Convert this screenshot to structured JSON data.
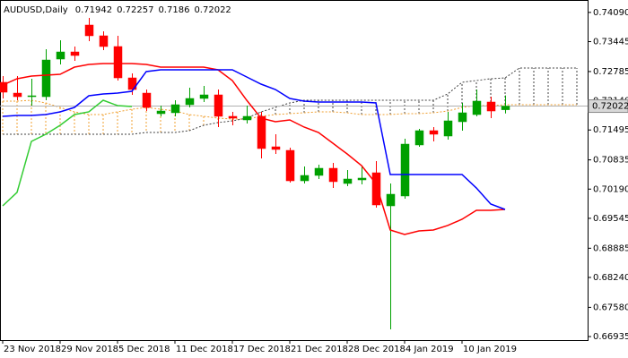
{
  "chart_data": {
    "type": "candlestick",
    "symbol": "AUDUSD,Daily",
    "categories": [
      "23 Nov 2018",
      null,
      null,
      null,
      "29 Nov 2018",
      null,
      null,
      null,
      "5 Dec 2018",
      null,
      null,
      null,
      "11 Dec 2018",
      null,
      null,
      null,
      "17 Dec 2018",
      null,
      null,
      null,
      "21 Dec 2018",
      null,
      null,
      null,
      "28 Dec 2018",
      null,
      null,
      null,
      "4 Jan 2019",
      null,
      null,
      null,
      "10 Jan 2019",
      null,
      null,
      null,
      null,
      null,
      null,
      null,
      null
    ],
    "ohlc": {
      "open": [
        0.72547,
        0.72309,
        0.7223,
        0.7223,
        0.7306,
        0.73218,
        0.73811,
        0.73574,
        0.73337,
        0.72645,
        0.72309,
        0.71855,
        0.71875,
        0.72053,
        0.72191,
        0.7227,
        0.71796,
        0.71717,
        0.71796,
        0.71124,
        0.71045,
        0.70373,
        0.70492,
        0.7065,
        0.70314,
        0.70393,
        0.70551,
        0.6982,
        0.70038,
        0.71164,
        0.7148,
        0.71361,
        0.71677,
        0.71835,
        0.72112,
        0.71942,
        null,
        null,
        null,
        null,
        null
      ],
      "high": [
        0.72685,
        0.72685,
        0.72626,
        0.73277,
        0.73475,
        0.73337,
        0.73969,
        0.73673,
        0.73574,
        0.72744,
        0.72388,
        0.72033,
        0.72151,
        0.72428,
        0.72468,
        0.72388,
        0.71895,
        0.72033,
        0.71895,
        0.71401,
        0.71104,
        0.7069,
        0.70729,
        0.70769,
        0.70611,
        0.7069,
        0.70808,
        0.70314,
        0.71302,
        0.71519,
        0.71559,
        0.71895,
        0.72092,
        0.72388,
        0.7223,
        0.72257,
        null,
        null,
        null,
        null,
        null
      ],
      "low": [
        0.72191,
        0.72151,
        0.72033,
        0.72151,
        0.72942,
        0.73021,
        0.73455,
        0.73258,
        0.72586,
        0.7227,
        0.71914,
        0.71796,
        0.71796,
        0.71993,
        0.72112,
        0.71559,
        0.71598,
        0.71638,
        0.70867,
        0.70966,
        0.70334,
        0.70314,
        0.70413,
        0.70215,
        0.70255,
        0.70294,
        0.69781,
        0.67094,
        0.69978,
        0.71124,
        0.71243,
        0.71282,
        0.7148,
        0.71796,
        0.71756,
        0.7186,
        null,
        null,
        null,
        null,
        null
      ],
      "close": [
        0.72329,
        0.7223,
        0.7225,
        0.7304,
        0.73218,
        0.73139,
        0.73574,
        0.73337,
        0.72645,
        0.72388,
        0.71993,
        0.71914,
        0.72053,
        0.72191,
        0.7227,
        0.71796,
        0.71756,
        0.71796,
        0.71085,
        0.71065,
        0.70373,
        0.70492,
        0.7065,
        0.70354,
        0.70413,
        0.70433,
        0.6984,
        0.70077,
        0.71183,
        0.7148,
        0.71401,
        0.71697,
        0.71875,
        0.72132,
        0.71914,
        0.72022,
        null,
        null,
        null,
        null,
        null
      ]
    },
    "up_color": "#00a000",
    "down_color": "#ff0000",
    "lines": [
      {
        "color": "#ff0000",
        "values": [
          0.72487,
          0.72626,
          0.72685,
          0.72705,
          0.72724,
          0.72882,
          0.72942,
          0.72961,
          0.72961,
          0.72961,
          0.72942,
          0.72882,
          0.72882,
          0.72882,
          0.72882,
          0.72823,
          0.72586,
          0.72151,
          0.71756,
          0.71677,
          0.71717,
          0.71559,
          0.7144,
          0.71203,
          0.70966,
          0.70709,
          0.70314,
          0.69287,
          0.69188,
          0.69267,
          0.69287,
          0.69386,
          0.69524,
          0.69722,
          0.69722,
          0.69741,
          null,
          null,
          null,
          null,
          null
        ]
      },
      {
        "color": "#0000ff",
        "values": [
          0.71796,
          0.71816,
          0.71816,
          0.71835,
          0.71895,
          0.71993,
          0.7225,
          0.7229,
          0.72309,
          0.72349,
          0.72784,
          0.72823,
          0.72823,
          0.72823,
          0.72823,
          0.72823,
          0.72823,
          0.72665,
          0.72507,
          0.72388,
          0.72191,
          0.72132,
          0.72112,
          0.72112,
          0.72112,
          0.72112,
          0.72092,
          0.70512,
          0.70512,
          0.70512,
          0.70512,
          0.70512,
          0.70512,
          0.70215,
          0.6986,
          0.69741,
          null,
          null,
          null,
          null,
          null
        ]
      },
      {
        "color": "#33cc33",
        "values": [
          0.6982,
          0.70117,
          0.71243,
          0.71401,
          0.71598,
          0.71835,
          0.71895,
          0.72151,
          0.72033,
          0.72013,
          null,
          null,
          null,
          null,
          null,
          null,
          null,
          null,
          null,
          null,
          null,
          null,
          null,
          null,
          null,
          null,
          null,
          null,
          null,
          null,
          null,
          null,
          null,
          null,
          null,
          null,
          null,
          null,
          null,
          null,
          null
        ]
      }
    ],
    "cloud": {
      "span_a": {
        "color": "#f0a030",
        "values": [
          0.72132,
          0.72132,
          0.72151,
          0.72092,
          0.71993,
          0.71895,
          0.71835,
          0.71835,
          0.71895,
          0.71954,
          0.71993,
          0.71954,
          0.71914,
          0.71835,
          0.71796,
          0.71756,
          0.71737,
          0.71737,
          0.71796,
          0.71835,
          0.71855,
          0.71875,
          0.71895,
          0.71895,
          0.71875,
          0.71835,
          0.71835,
          0.71835,
          0.71855,
          0.71855,
          0.71875,
          0.71914,
          0.71993,
          0.72033,
          0.72033,
          0.72053,
          0.72053,
          0.72053,
          0.72053,
          0.72053,
          0.72053
        ]
      },
      "span_b": {
        "color": "#404040",
        "values": [
          0.71401,
          0.71401,
          0.71401,
          0.71401,
          0.71401,
          0.71401,
          0.71401,
          0.71401,
          0.71401,
          0.71401,
          0.7144,
          0.7144,
          0.7144,
          0.7148,
          0.71598,
          0.71658,
          0.71697,
          0.71756,
          0.71895,
          0.71993,
          0.72092,
          0.72151,
          0.72151,
          0.72151,
          0.72151,
          0.72151,
          0.72151,
          0.72151,
          0.72151,
          0.72151,
          0.72151,
          0.7229,
          0.72547,
          0.72586,
          0.72626,
          0.72645,
          0.72863,
          0.72863,
          0.72863,
          0.72863,
          0.72863
        ]
      }
    },
    "ylim": [
      0.66857,
      0.74364
    ],
    "yticks": [
      {
        "value": 0.7409,
        "label": "0.74090"
      },
      0.73445,
      0.72785,
      {
        "value": 0.7214,
        "label": "0.72140"
      },
      0.71495,
      0.70835,
      {
        "value": 0.7019,
        "label": "0.70190"
      },
      0.69545,
      0.68885,
      {
        "value": 0.6824,
        "label": "0.68240"
      },
      {
        "value": 0.6758,
        "label": "0.67580"
      },
      0.66935
    ],
    "grid": false
  }
}
